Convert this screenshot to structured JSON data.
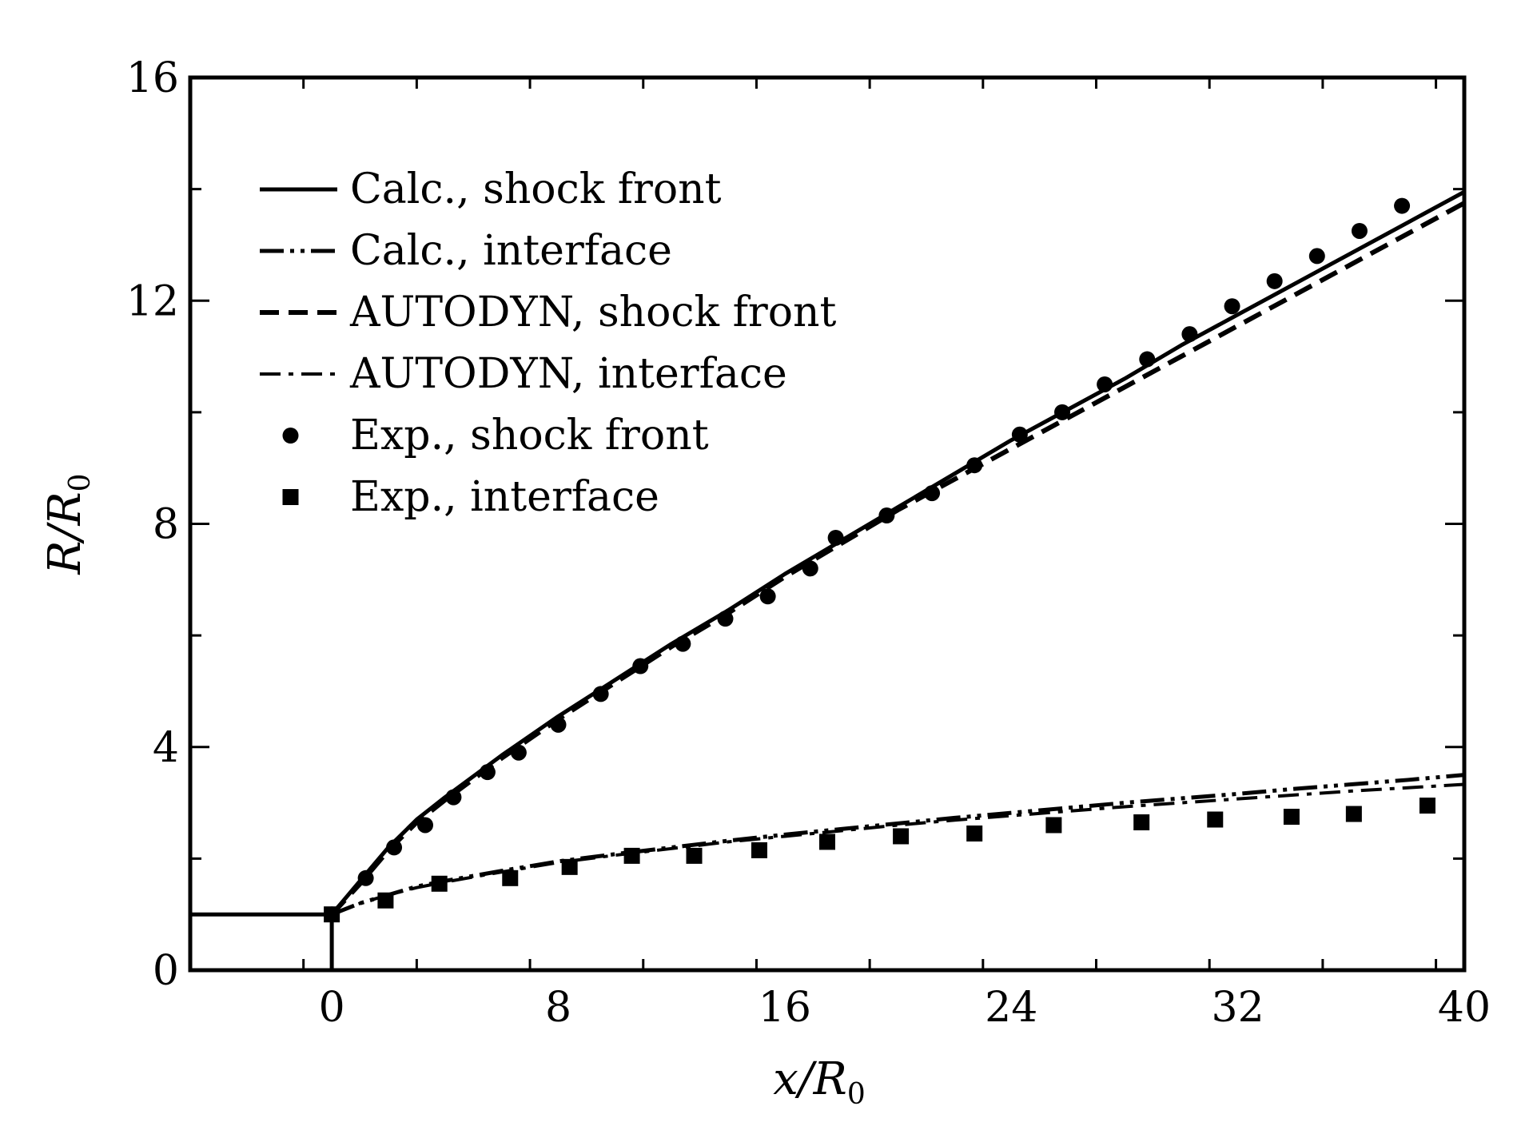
{
  "chart_data": {
    "type": "line",
    "title": "",
    "xlabel": {
      "base": "x/R",
      "sub": "0"
    },
    "ylabel": {
      "base": "R/R",
      "sub": "0"
    },
    "xlim": [
      -5,
      40
    ],
    "ylim": [
      0,
      16
    ],
    "x_ticks": [
      "0",
      "8",
      "16",
      "24",
      "32",
      "40"
    ],
    "y_ticks": [
      "0",
      "4",
      "8",
      "12",
      "16"
    ],
    "grid": false,
    "legend_position": "top-left",
    "nozzle": {
      "x": [
        -5,
        0,
        0
      ],
      "y": [
        1,
        1,
        0
      ]
    },
    "series": [
      {
        "name": "Calc., shock front",
        "style": "solid",
        "x": [
          0,
          1,
          2,
          3,
          4,
          6,
          8,
          10,
          12,
          14,
          16,
          18,
          20,
          22,
          24,
          26,
          28,
          30,
          32,
          34,
          36,
          38,
          40
        ],
        "y": [
          1.0,
          1.6,
          2.2,
          2.7,
          3.1,
          3.85,
          4.55,
          5.2,
          5.85,
          6.45,
          7.1,
          7.7,
          8.3,
          8.9,
          9.5,
          10.05,
          10.6,
          11.2,
          11.75,
          12.3,
          12.85,
          13.4,
          13.95
        ]
      },
      {
        "name": "Calc., interface",
        "style": "longdash-dotdot",
        "x": [
          0,
          1,
          2,
          3,
          4,
          6,
          8,
          10,
          12,
          14,
          16,
          18,
          20,
          22,
          24,
          26,
          28,
          30,
          32,
          34,
          36,
          38,
          40
        ],
        "y": [
          1.0,
          1.2,
          1.35,
          1.5,
          1.6,
          1.78,
          1.95,
          2.08,
          2.2,
          2.32,
          2.43,
          2.53,
          2.63,
          2.73,
          2.82,
          2.91,
          3.0,
          3.08,
          3.16,
          3.25,
          3.33,
          3.41,
          3.5
        ]
      },
      {
        "name": "AUTODYN, shock front",
        "style": "dashed",
        "x": [
          0,
          1,
          2,
          3,
          4,
          6,
          8,
          10,
          12,
          14,
          16,
          18,
          20,
          22,
          24,
          26,
          28,
          30,
          32,
          34,
          36,
          38,
          40
        ],
        "y": [
          1.0,
          1.55,
          2.15,
          2.65,
          3.05,
          3.8,
          4.5,
          5.15,
          5.8,
          6.4,
          7.05,
          7.65,
          8.25,
          8.8,
          9.35,
          9.9,
          10.45,
          11.0,
          11.55,
          12.1,
          12.65,
          13.2,
          13.75
        ]
      },
      {
        "name": "AUTODYN, interface",
        "style": "dashdot",
        "x": [
          0,
          1,
          2,
          3,
          4,
          6,
          8,
          10,
          12,
          14,
          16,
          18,
          20,
          22,
          24,
          26,
          28,
          30,
          32,
          34,
          36,
          38,
          40
        ],
        "y": [
          1.0,
          1.2,
          1.35,
          1.48,
          1.58,
          1.76,
          1.93,
          2.06,
          2.18,
          2.3,
          2.4,
          2.5,
          2.6,
          2.69,
          2.77,
          2.85,
          2.93,
          3.0,
          3.07,
          3.14,
          3.21,
          3.27,
          3.33
        ]
      },
      {
        "name": "Exp., shock front",
        "style": "circle-markers",
        "x": [
          0,
          1.2,
          2.2,
          3.3,
          4.3,
          5.5,
          6.6,
          8.0,
          9.5,
          10.9,
          12.4,
          13.9,
          15.4,
          16.9,
          17.8,
          19.6,
          21.2,
          22.7,
          24.3,
          25.8,
          27.3,
          28.8,
          30.3,
          31.8,
          33.3,
          34.8,
          36.3,
          37.8
        ],
        "y": [
          1.0,
          1.65,
          2.2,
          2.6,
          3.1,
          3.55,
          3.9,
          4.4,
          4.95,
          5.45,
          5.85,
          6.3,
          6.7,
          7.2,
          7.75,
          8.15,
          8.55,
          9.05,
          9.6,
          10.0,
          10.5,
          10.95,
          11.4,
          11.9,
          12.35,
          12.8,
          13.25,
          13.7
        ]
      },
      {
        "name": "Exp., interface",
        "style": "square-markers",
        "x": [
          0,
          1.9,
          3.8,
          6.3,
          8.4,
          10.6,
          12.8,
          15.1,
          17.5,
          20.1,
          22.7,
          25.5,
          28.6,
          31.2,
          33.9,
          36.1,
          38.7
        ],
        "y": [
          1.0,
          1.25,
          1.55,
          1.65,
          1.85,
          2.05,
          2.05,
          2.15,
          2.3,
          2.4,
          2.45,
          2.6,
          2.65,
          2.7,
          2.75,
          2.8,
          2.95
        ]
      }
    ]
  }
}
